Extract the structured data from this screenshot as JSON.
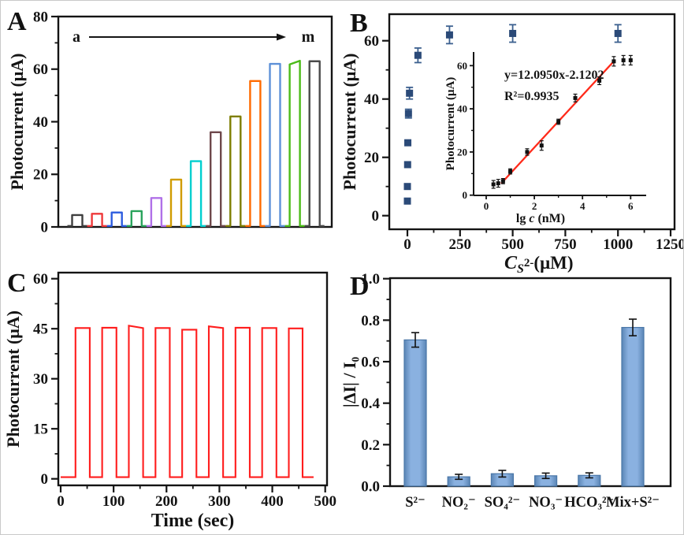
{
  "panel_labels": {
    "a": "A",
    "b": "B",
    "c": "C",
    "d": "D"
  },
  "chart_data": [
    {
      "id": "A",
      "type": "line",
      "subtype": "pulse-train",
      "ylabel": "Photocurrent (μA)",
      "ylim": [
        0,
        80
      ],
      "yticks": [
        0,
        20,
        40,
        60,
        80
      ],
      "minor_yticks": [
        10,
        30,
        50,
        70
      ],
      "annotation": {
        "from": "a",
        "to": "m"
      },
      "grid": false,
      "pulses": [
        {
          "label": "a",
          "height": 4.5,
          "color": "#3f3f3f"
        },
        {
          "label": "b",
          "height": 5.0,
          "color": "#ee3a3b"
        },
        {
          "label": "c",
          "height": 5.5,
          "color": "#2d5cdf"
        },
        {
          "label": "d",
          "height": 6.0,
          "color": "#2aa35c"
        },
        {
          "label": "e",
          "height": 11.0,
          "color": "#b070e8"
        },
        {
          "label": "f",
          "height": 18.0,
          "color": "#d09c00"
        },
        {
          "label": "g",
          "height": 25.0,
          "color": "#00cfcf"
        },
        {
          "label": "h",
          "height": 36.0,
          "color": "#6e484b"
        },
        {
          "label": "i",
          "height": 42.0,
          "color": "#7e7e00"
        },
        {
          "label": "j",
          "height": 55.5,
          "color": "#ff6a00"
        },
        {
          "label": "k",
          "height": 62.0,
          "color": "#5e91d8"
        },
        {
          "label": "l",
          "height": 61.8,
          "height2": 63.2,
          "color": "#4bbb18"
        },
        {
          "label": "m",
          "height": 63.0,
          "color": "#4a4a4a"
        }
      ]
    },
    {
      "id": "B",
      "type": "scatter",
      "xlabel_parts": {
        "italic_c": "C",
        "sub": "S",
        "sup": "2-",
        "unit": "(μM)"
      },
      "ylabel": "Photocurrent (μA)",
      "xlim": [
        -80,
        1290
      ],
      "ylim": [
        -4.7,
        69
      ],
      "xticks": [
        0,
        250,
        500,
        750,
        1000,
        1250
      ],
      "minor_xticks": [
        125,
        375,
        625,
        875,
        1125
      ],
      "yticks": [
        0,
        20,
        40,
        60
      ],
      "minor_yticks": [
        10,
        30,
        50
      ],
      "marker_color": "#2b4a78",
      "grid": false,
      "points": [
        {
          "x": 0,
          "y": 5,
          "err": 0
        },
        {
          "x": 0,
          "y": 10,
          "err": 0
        },
        {
          "x": 1,
          "y": 17.5,
          "err": 0
        },
        {
          "x": 2,
          "y": 25,
          "err": 0
        },
        {
          "x": 5,
          "y": 35,
          "err": 1.5
        },
        {
          "x": 10,
          "y": 42,
          "err": 2
        },
        {
          "x": 50,
          "y": 55,
          "err": 2.5
        },
        {
          "x": 200,
          "y": 62,
          "err": 3
        },
        {
          "x": 500,
          "y": 62.5,
          "err": 3
        },
        {
          "x": 1000,
          "y": 62.5,
          "err": 3
        }
      ],
      "inset": {
        "type": "scatter",
        "equation": "y=12.0950x-2.1202",
        "r2": "R²=0.9935",
        "xlabel_parts": [
          [
            "lg ",
            "n"
          ],
          [
            "c",
            "i"
          ],
          [
            " (nM)",
            "n"
          ]
        ],
        "ylabel": "Photocurrent (μA)",
        "xlim": [
          -0.6,
          6.6
        ],
        "ylim": [
          0,
          70
        ],
        "xticks": [
          0,
          2,
          4,
          6
        ],
        "minor_xticks": [
          1,
          3,
          5
        ],
        "yticks": [
          0,
          20,
          40,
          60
        ],
        "minor_yticks": [
          10,
          30,
          50
        ],
        "marker_color": "#111111",
        "line_color": "#ff2a1a",
        "fit": {
          "x1": 0.62,
          "y1": 5.4,
          "x2": 5.3,
          "y2": 62
        },
        "points": [
          {
            "x": 0.3,
            "y": 5,
            "err": 1.8
          },
          {
            "x": 0.5,
            "y": 5.5,
            "err": 1.8
          },
          {
            "x": 0.7,
            "y": 6.5,
            "err": 1.2
          },
          {
            "x": 1.0,
            "y": 11,
            "err": 1.2
          },
          {
            "x": 1.7,
            "y": 20,
            "err": 1.5
          },
          {
            "x": 2.3,
            "y": 23,
            "err": 2.2
          },
          {
            "x": 3.0,
            "y": 34,
            "err": 1.2
          },
          {
            "x": 3.7,
            "y": 45,
            "err": 1.8
          },
          {
            "x": 4.7,
            "y": 53,
            "err": 1.8
          },
          {
            "x": 5.3,
            "y": 62,
            "err": 2.2
          },
          {
            "x": 5.7,
            "y": 62.5,
            "err": 2.2
          },
          {
            "x": 6.0,
            "y": 62.5,
            "err": 2.2
          }
        ]
      }
    },
    {
      "id": "C",
      "type": "line",
      "subtype": "pulse-train",
      "xlabel": "Time (sec)",
      "ylabel": "Photocurrent (μA)",
      "xlim": [
        0,
        500
      ],
      "ylim": [
        -2,
        61
      ],
      "xticks": [
        0,
        100,
        200,
        300,
        400,
        500
      ],
      "minor_xticks": [
        50,
        150,
        250,
        350,
        450
      ],
      "yticks": [
        0,
        15,
        30,
        45,
        60
      ],
      "minor_yticks": [
        7.5,
        22.5,
        37.5,
        52.5
      ],
      "color": "#ff1d1d",
      "baseline": 0.5,
      "t_end": 478,
      "grid": false,
      "pulses": [
        {
          "on": 28,
          "off": 55,
          "h": 45.2
        },
        {
          "on": 78.4,
          "off": 105.4,
          "h": 45.3
        },
        {
          "on": 128.8,
          "off": 155.8,
          "h": 45.9,
          "h2": 45.2
        },
        {
          "on": 179.2,
          "off": 206.2,
          "h": 45.2
        },
        {
          "on": 229.6,
          "off": 256.6,
          "h": 44.7
        },
        {
          "on": 280,
          "off": 307,
          "h": 45.7,
          "h2": 45.2
        },
        {
          "on": 330.4,
          "off": 357.4,
          "h": 45.3
        },
        {
          "on": 380.8,
          "off": 407.8,
          "h": 45.2
        },
        {
          "on": 431.2,
          "off": 457.2,
          "h": 45.1
        }
      ]
    },
    {
      "id": "D",
      "type": "bar",
      "ylabel": "|ΔI| / I₀",
      "ylim": [
        0,
        1.0
      ],
      "yticks": [
        0,
        0.2,
        0.4,
        0.6,
        0.8,
        1.0
      ],
      "minor_yticks": [
        0.1,
        0.3,
        0.5,
        0.7,
        0.9
      ],
      "ytick_decimals": 1,
      "categories": [
        "S²⁻",
        "NO₂⁻",
        "SO₄²⁻",
        "NO₃⁻",
        "HCO₃²⁻",
        "Mix+S²⁻"
      ],
      "values": [
        0.705,
        0.045,
        0.06,
        0.05,
        0.052,
        0.765
      ],
      "errors": [
        0.035,
        0.012,
        0.016,
        0.013,
        0.012,
        0.04
      ],
      "bar_fill_center": "#8ab1e0",
      "bar_fill_edge": "#5a85b5",
      "bar_edge": "#4a77a8",
      "error_color": "#111111",
      "grid": false
    }
  ]
}
